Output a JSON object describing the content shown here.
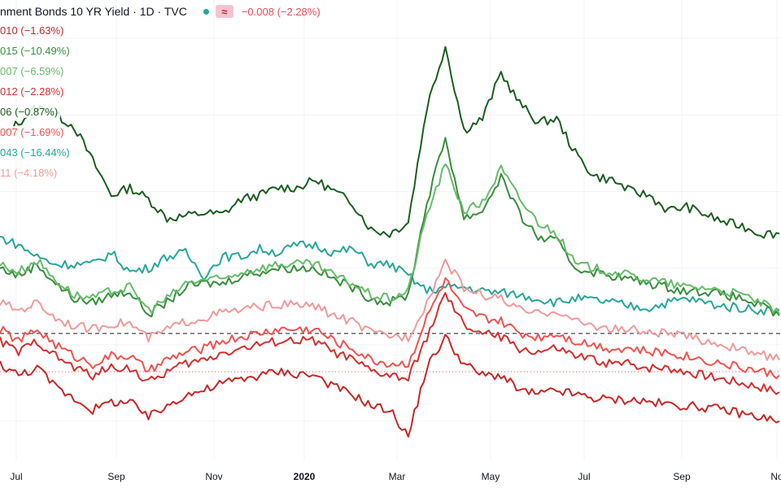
{
  "header": {
    "title": "nment Bonds 10 YR Yield · 1D · TVC",
    "toggle_glyph": "≈",
    "change": "−0.008 (−2.28%)"
  },
  "legend": [
    {
      "text": "010 (−1.63%)",
      "color": "#c62828"
    },
    {
      "text": "015 (−10.49%)",
      "color": "#388e3c"
    },
    {
      "text": "007 (−6.59%)",
      "color": "#66bb6a"
    },
    {
      "text": "012 (−2.28%)",
      "color": "#d32f2f"
    },
    {
      "text": "06 (−0.87%)",
      "color": "#1b5e20"
    },
    {
      "text": "007 (−1.69%)",
      "color": "#ef5350"
    },
    {
      "text": "043 (−16.44%)",
      "color": "#26a69a"
    },
    {
      "text": "11 (−4.18%)",
      "color": "#ef9a9a"
    }
  ],
  "chart_data": {
    "type": "line",
    "x_ticks": [
      {
        "label": "Jul",
        "bold": false
      },
      {
        "label": "Sep",
        "bold": false
      },
      {
        "label": "Nov",
        "bold": false
      },
      {
        "label": "2020",
        "bold": true
      },
      {
        "label": "Mar",
        "bold": false
      },
      {
        "label": "May",
        "bold": false
      },
      {
        "label": "Jul",
        "bold": false
      },
      {
        "label": "Sep",
        "bold": false
      },
      {
        "label": "No",
        "bold": false
      }
    ],
    "series": [
      {
        "color": "#1b5e20",
        "values": [
          2.7,
          2.9,
          3.1,
          3.0,
          2.85,
          2.4,
          1.95,
          2.05,
          1.9,
          1.65,
          1.68,
          1.72,
          1.7,
          1.9,
          1.95,
          2.05,
          2.05,
          2.15,
          2.0,
          1.85,
          1.5,
          1.45,
          1.6,
          3.1,
          3.9,
          2.8,
          2.95,
          3.55,
          3.15,
          2.9,
          2.95,
          2.5,
          2.2,
          2.15,
          2.0,
          1.95,
          1.75,
          1.8,
          1.7,
          1.6,
          1.55,
          1.45,
          1.45
        ]
      },
      {
        "color": "#26a69a",
        "values": [
          1.4,
          1.3,
          1.15,
          1.05,
          1.05,
          1.05,
          1.2,
          0.95,
          1.0,
          1.15,
          1.2,
          0.9,
          1.15,
          1.15,
          1.25,
          1.2,
          1.3,
          1.3,
          1.2,
          1.25,
          1.05,
          1.05,
          0.9,
          0.7,
          0.75,
          0.75,
          0.7,
          0.68,
          0.65,
          0.6,
          0.55,
          0.6,
          0.58,
          0.55,
          0.5,
          0.48,
          0.55,
          0.6,
          0.55,
          0.5,
          0.48,
          0.45,
          0.45
        ]
      },
      {
        "color": "#388e3c",
        "values": [
          1.0,
          0.9,
          1.05,
          0.8,
          0.6,
          0.55,
          0.65,
          0.7,
          0.4,
          0.55,
          0.75,
          0.8,
          0.8,
          0.9,
          0.95,
          1.0,
          1.0,
          1.0,
          0.85,
          0.75,
          0.6,
          0.55,
          0.65,
          1.85,
          2.7,
          1.65,
          1.75,
          2.2,
          1.7,
          1.4,
          1.35,
          1.0,
          0.95,
          0.9,
          0.85,
          0.8,
          0.75,
          0.7,
          0.7,
          0.65,
          0.6,
          0.5,
          0.38
        ]
      },
      {
        "color": "#66bb6a",
        "values": [
          1.05,
          0.95,
          1.1,
          0.85,
          0.65,
          0.6,
          0.7,
          0.75,
          0.45,
          0.6,
          0.8,
          0.85,
          0.85,
          0.95,
          1.0,
          1.05,
          1.05,
          1.05,
          0.9,
          0.8,
          0.65,
          0.6,
          0.7,
          1.7,
          2.35,
          1.75,
          1.85,
          2.3,
          1.9,
          1.6,
          1.45,
          1.05,
          1.0,
          0.95,
          0.9,
          0.85,
          0.8,
          0.75,
          0.75,
          0.7,
          0.65,
          0.55,
          0.4
        ]
      },
      {
        "color": "#ef9a9a",
        "values": [
          0.55,
          0.45,
          0.55,
          0.35,
          0.25,
          0.2,
          0.28,
          0.28,
          0.08,
          0.2,
          0.3,
          0.35,
          0.42,
          0.45,
          0.5,
          0.52,
          0.52,
          0.5,
          0.38,
          0.3,
          0.15,
          0.12,
          0.1,
          0.55,
          1.1,
          0.75,
          0.65,
          0.6,
          0.45,
          0.4,
          0.45,
          0.3,
          0.25,
          0.2,
          0.2,
          0.15,
          0.15,
          0.1,
          0.05,
          0.0,
          -0.08,
          -0.12,
          -0.2
        ]
      },
      {
        "color": "#ef5350",
        "values": [
          0.2,
          0.05,
          0.2,
          0.0,
          -0.15,
          -0.25,
          -0.15,
          -0.15,
          -0.35,
          -0.2,
          -0.1,
          -0.05,
          0.05,
          0.1,
          0.15,
          0.2,
          0.2,
          0.2,
          0.05,
          -0.05,
          -0.2,
          -0.25,
          -0.25,
          0.35,
          0.85,
          0.45,
          0.35,
          0.3,
          0.15,
          0.1,
          0.15,
          0.05,
          0.0,
          -0.05,
          -0.05,
          -0.1,
          -0.1,
          -0.15,
          -0.2,
          -0.25,
          -0.3,
          -0.35,
          -0.4
        ]
      },
      {
        "color": "#d32f2f",
        "values": [
          0.05,
          -0.1,
          0.05,
          -0.15,
          -0.3,
          -0.4,
          -0.3,
          -0.3,
          -0.5,
          -0.35,
          -0.25,
          -0.2,
          -0.1,
          -0.05,
          0.0,
          0.05,
          0.05,
          0.05,
          -0.1,
          -0.2,
          -0.35,
          -0.4,
          -0.45,
          0.1,
          0.65,
          0.25,
          0.15,
          0.1,
          -0.05,
          -0.1,
          -0.05,
          -0.15,
          -0.2,
          -0.25,
          -0.25,
          -0.3,
          -0.3,
          -0.35,
          -0.4,
          -0.45,
          -0.5,
          -0.55,
          -0.62
        ]
      },
      {
        "color": "#c62828",
        "values": [
          -0.25,
          -0.4,
          -0.3,
          -0.55,
          -0.7,
          -0.85,
          -0.75,
          -0.75,
          -0.95,
          -0.8,
          -0.65,
          -0.6,
          -0.5,
          -0.45,
          -0.4,
          -0.35,
          -0.38,
          -0.4,
          -0.55,
          -0.65,
          -0.8,
          -0.85,
          -1.2,
          -0.3,
          0.1,
          -0.25,
          -0.4,
          -0.4,
          -0.6,
          -0.65,
          -0.6,
          -0.65,
          -0.7,
          -0.72,
          -0.72,
          -0.75,
          -0.78,
          -0.8,
          -0.82,
          -0.85,
          -0.9,
          -0.95,
          -1.0
        ]
      }
    ]
  }
}
